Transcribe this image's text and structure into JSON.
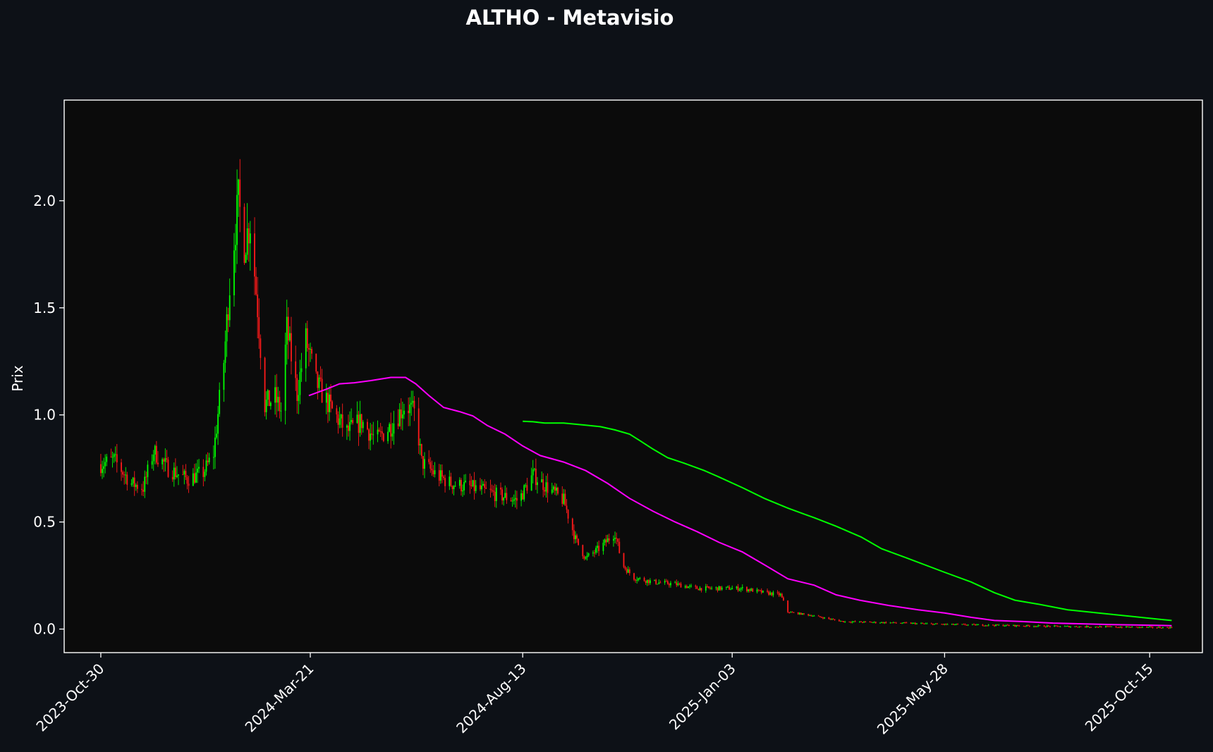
{
  "chart_data": {
    "type": "candlestick",
    "title": "ALTHO - Metavisio",
    "ylabel": "Prix",
    "xlabel": "",
    "ylim": [
      -0.11,
      2.47
    ],
    "xlim": [
      "2023-10-05",
      "2025-11-20"
    ],
    "y_ticks": [
      0.0,
      0.5,
      1.0,
      1.5,
      2.0
    ],
    "x_ticks": [
      "2023-10-30",
      "2024-03-21",
      "2024-08-13",
      "2025-01-03",
      "2025-05-28",
      "2025-10-15"
    ],
    "x_tick_labels": [
      "2023-Oct-30",
      "2024-Mar-21",
      "2024-Aug-13",
      "2025-Jan-03",
      "2025-May-28",
      "2025-Oct-15"
    ],
    "grid": false,
    "colors": {
      "background": "#0d1117",
      "plot_background": "#0b0b0b",
      "axes": "#ffffff",
      "up": "#00ff00",
      "down": "#ff1a1a",
      "ma_short": "#ff00ff",
      "ma_long": "#00ff00"
    },
    "price_path": [
      [
        "2023-10-30",
        0.77
      ],
      [
        "2023-11-08",
        0.79
      ],
      [
        "2023-11-20",
        0.68
      ],
      [
        "2023-11-28",
        0.66
      ],
      [
        "2023-12-05",
        0.83
      ],
      [
        "2023-12-15",
        0.75
      ],
      [
        "2023-12-28",
        0.7
      ],
      [
        "2024-01-08",
        0.73
      ],
      [
        "2024-01-15",
        0.82
      ],
      [
        "2024-01-22",
        1.25
      ],
      [
        "2024-01-27",
        1.7
      ],
      [
        "2024-02-01",
        2.0
      ],
      [
        "2024-02-05",
        1.8
      ],
      [
        "2024-02-09",
        1.9
      ],
      [
        "2024-02-14",
        1.5
      ],
      [
        "2024-02-19",
        1.05
      ],
      [
        "2024-02-26",
        1.08
      ],
      [
        "2024-03-01",
        1.02
      ],
      [
        "2024-03-05",
        1.4
      ],
      [
        "2024-03-12",
        1.1
      ],
      [
        "2024-03-18",
        1.35
      ],
      [
        "2024-03-25",
        1.15
      ],
      [
        "2024-04-05",
        1.02
      ],
      [
        "2024-04-15",
        0.92
      ],
      [
        "2024-04-25",
        0.97
      ],
      [
        "2024-05-05",
        0.88
      ],
      [
        "2024-05-15",
        0.95
      ],
      [
        "2024-05-25",
        1.05
      ],
      [
        "2024-06-01",
        1.0
      ],
      [
        "2024-06-05",
        0.78
      ],
      [
        "2024-06-15",
        0.72
      ],
      [
        "2024-06-25",
        0.68
      ],
      [
        "2024-07-10",
        0.66
      ],
      [
        "2024-07-25",
        0.63
      ],
      [
        "2024-08-10",
        0.6
      ],
      [
        "2024-08-20",
        0.72
      ],
      [
        "2024-08-30",
        0.66
      ],
      [
        "2024-09-10",
        0.6
      ],
      [
        "2024-09-18",
        0.42
      ],
      [
        "2024-09-25",
        0.33
      ],
      [
        "2024-10-05",
        0.38
      ],
      [
        "2024-10-15",
        0.45
      ],
      [
        "2024-10-20",
        0.3
      ],
      [
        "2024-10-28",
        0.24
      ],
      [
        "2024-11-10",
        0.22
      ],
      [
        "2024-11-25",
        0.21
      ],
      [
        "2024-12-10",
        0.19
      ],
      [
        "2024-12-28",
        0.19
      ],
      [
        "2025-01-10",
        0.19
      ],
      [
        "2025-01-25",
        0.17
      ],
      [
        "2025-02-05",
        0.16
      ],
      [
        "2025-02-10",
        0.08
      ],
      [
        "2025-02-25",
        0.065
      ],
      [
        "2025-03-20",
        0.035
      ],
      [
        "2025-04-20",
        0.03
      ],
      [
        "2025-05-28",
        0.022
      ],
      [
        "2025-07-01",
        0.018
      ],
      [
        "2025-08-10",
        0.013
      ],
      [
        "2025-09-20",
        0.01
      ],
      [
        "2025-10-15",
        0.008
      ],
      [
        "2025-10-30",
        0.007
      ]
    ],
    "series": [
      {
        "values": [
          [
            "2024-03-20",
            1.09
          ],
          [
            "2024-04-01",
            1.12
          ],
          [
            "2024-04-10",
            1.145
          ],
          [
            "2024-04-20",
            1.15
          ],
          [
            "2024-05-01",
            1.16
          ],
          [
            "2024-05-15",
            1.175
          ],
          [
            "2024-05-25",
            1.175
          ],
          [
            "2024-06-01",
            1.145
          ],
          [
            "2024-06-10",
            1.09
          ],
          [
            "2024-06-20",
            1.035
          ],
          [
            "2024-07-01",
            1.015
          ],
          [
            "2024-07-10",
            0.995
          ],
          [
            "2024-07-20",
            0.95
          ],
          [
            "2024-08-01",
            0.91
          ],
          [
            "2024-08-13",
            0.855
          ],
          [
            "2024-08-25",
            0.81
          ],
          [
            "2024-09-10",
            0.78
          ],
          [
            "2024-09-25",
            0.74
          ],
          [
            "2024-10-10",
            0.68
          ],
          [
            "2024-10-25",
            0.61
          ],
          [
            "2024-11-10",
            0.55
          ],
          [
            "2024-11-25",
            0.5
          ],
          [
            "2024-12-10",
            0.455
          ],
          [
            "2024-12-25",
            0.405
          ],
          [
            "2025-01-10",
            0.36
          ],
          [
            "2025-01-25",
            0.3
          ],
          [
            "2025-02-10",
            0.235
          ],
          [
            "2025-02-28",
            0.205
          ],
          [
            "2025-03-15",
            0.16
          ],
          [
            "2025-03-31",
            0.135
          ],
          [
            "2025-04-20",
            0.11
          ],
          [
            "2025-05-10",
            0.09
          ],
          [
            "2025-05-28",
            0.075
          ],
          [
            "2025-06-15",
            0.055
          ],
          [
            "2025-07-01",
            0.04
          ],
          [
            "2025-07-20",
            0.035
          ],
          [
            "2025-08-10",
            0.028
          ],
          [
            "2025-09-01",
            0.024
          ],
          [
            "2025-09-20",
            0.021
          ],
          [
            "2025-10-15",
            0.018
          ],
          [
            "2025-10-30",
            0.016
          ]
        ]
      },
      {
        "values": [
          [
            "2024-08-13",
            0.97
          ],
          [
            "2024-08-20",
            0.968
          ],
          [
            "2024-08-28",
            0.962
          ],
          [
            "2024-09-10",
            0.962
          ],
          [
            "2024-09-25",
            0.952
          ],
          [
            "2024-10-05",
            0.945
          ],
          [
            "2024-10-15",
            0.93
          ],
          [
            "2024-10-25",
            0.91
          ],
          [
            "2024-11-01",
            0.88
          ],
          [
            "2024-11-10",
            0.84
          ],
          [
            "2024-11-20",
            0.8
          ],
          [
            "2024-12-01",
            0.775
          ],
          [
            "2024-12-15",
            0.74
          ],
          [
            "2024-12-25",
            0.71
          ],
          [
            "2025-01-10",
            0.66
          ],
          [
            "2025-01-25",
            0.61
          ],
          [
            "2025-02-10",
            0.565
          ],
          [
            "2025-02-28",
            0.52
          ],
          [
            "2025-03-15",
            0.48
          ],
          [
            "2025-04-01",
            0.43
          ],
          [
            "2025-04-15",
            0.375
          ],
          [
            "2025-05-01",
            0.335
          ],
          [
            "2025-05-28",
            0.265
          ],
          [
            "2025-06-15",
            0.22
          ],
          [
            "2025-07-01",
            0.17
          ],
          [
            "2025-07-15",
            0.135
          ],
          [
            "2025-08-01",
            0.115
          ],
          [
            "2025-08-20",
            0.09
          ],
          [
            "2025-09-10",
            0.075
          ],
          [
            "2025-10-01",
            0.06
          ],
          [
            "2025-10-30",
            0.04
          ]
        ]
      }
    ]
  }
}
